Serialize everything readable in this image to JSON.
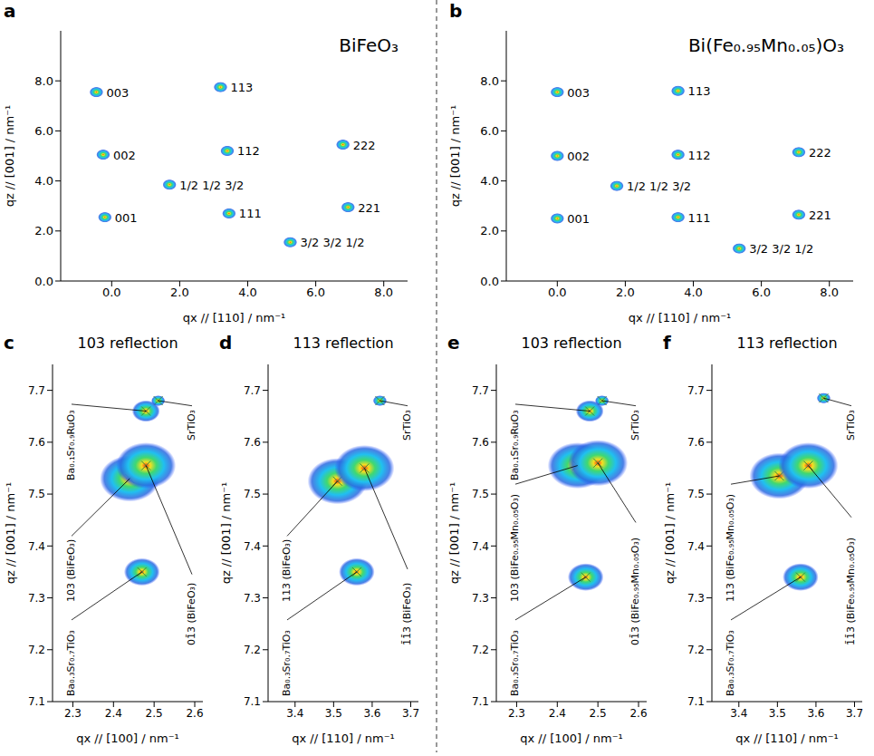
{
  "chart_data": [
    {
      "panel": "a",
      "type": "scatter",
      "title": "BiFeO₃",
      "x_label": "qx // [110] / nm⁻¹",
      "y_label": "qz // [001] / nm⁻¹",
      "xlim": [
        -1.5,
        8.7
      ],
      "xticks": [
        {
          "value": 0,
          "label": "0.0"
        },
        {
          "value": 2,
          "label": "2.0"
        },
        {
          "value": 4,
          "label": "4.0"
        },
        {
          "value": 6,
          "label": "6.0"
        },
        {
          "value": 8,
          "label": "8.0"
        }
      ],
      "ylim": [
        0,
        10
      ],
      "yticks": [
        {
          "value": 0,
          "label": "0.0"
        },
        {
          "value": 2,
          "label": "2.0"
        },
        {
          "value": 4,
          "label": "4.0"
        },
        {
          "value": 6,
          "label": "6.0"
        },
        {
          "value": 8,
          "label": "8.0"
        }
      ],
      "x": [
        -0.2,
        -0.25,
        -0.45,
        3.45,
        3.4,
        3.2,
        6.95,
        6.8,
        1.7,
        5.25
      ],
      "values": [
        2.55,
        5.05,
        7.55,
        2.7,
        5.2,
        7.75,
        2.95,
        5.45,
        3.85,
        1.55
      ],
      "labels": [
        "001",
        "002",
        "003",
        "111",
        "112",
        "113",
        "221",
        "222",
        "1/2 1/2 3/2",
        "3/2 3/2 1/2"
      ]
    },
    {
      "panel": "b",
      "type": "scatter",
      "title": "Bi(Fe₀.₉₅Mn₀.₀₅)O₃",
      "x_label": "qx // [110] / nm⁻¹",
      "y_label": "qz // [001] / nm⁻¹",
      "xlim": [
        -1.5,
        8.7
      ],
      "xticks": [
        {
          "value": 0,
          "label": "0.0"
        },
        {
          "value": 2,
          "label": "2.0"
        },
        {
          "value": 4,
          "label": "4.0"
        },
        {
          "value": 6,
          "label": "6.0"
        },
        {
          "value": 8,
          "label": "8.0"
        }
      ],
      "ylim": [
        0,
        10
      ],
      "yticks": [
        {
          "value": 0,
          "label": "0.0"
        },
        {
          "value": 2,
          "label": "2.0"
        },
        {
          "value": 4,
          "label": "4.0"
        },
        {
          "value": 6,
          "label": "6.0"
        },
        {
          "value": 8,
          "label": "8.0"
        }
      ],
      "x": [
        0,
        0,
        0,
        3.55,
        3.55,
        3.55,
        7.1,
        7.1,
        1.75,
        5.35
      ],
      "values": [
        2.5,
        5.0,
        7.55,
        2.55,
        5.05,
        7.6,
        2.65,
        5.15,
        3.8,
        1.3
      ],
      "labels": [
        "001",
        "002",
        "003",
        "111",
        "112",
        "113",
        "221",
        "222",
        "1/2 1/2 3/2",
        "3/2 3/2 1/2"
      ]
    },
    {
      "panel": "c",
      "type": "scatter",
      "title": "103 reflection",
      "x_label": "qx // [100] / nm⁻¹",
      "y_label": "qz // [001] / nm⁻¹",
      "xlim": [
        2.25,
        2.62
      ],
      "xticks": [
        2.3,
        2.4,
        2.5,
        2.6
      ],
      "ylim": [
        7.1,
        7.75
      ],
      "yticks": [
        7.1,
        7.2,
        7.3,
        7.4,
        7.5,
        7.6,
        7.7
      ],
      "x": [
        2.51,
        2.48,
        2.44,
        2.48,
        2.47
      ],
      "values": [
        7.68,
        7.66,
        7.53,
        7.555,
        7.35
      ],
      "labels": [
        "SrTiO₃",
        "Ba₀.₁Sr₀.₉RuO₃",
        "103 (BiFeO₃)",
        "01̄3 (BiFeO₃)",
        "Ba₀.₃Sr₀.₇TiO₃"
      ]
    },
    {
      "panel": "d",
      "type": "scatter",
      "title": "113 reflection",
      "x_label": "qx // [110] / nm⁻¹",
      "y_label": "qz // [001] / nm⁻¹",
      "xlim": [
        3.33,
        3.72
      ],
      "xticks": [
        3.4,
        3.5,
        3.6,
        3.7
      ],
      "ylim": [
        7.1,
        7.75
      ],
      "yticks": [
        7.1,
        7.2,
        7.3,
        7.4,
        7.5,
        7.6,
        7.7
      ],
      "x": [
        3.62,
        3.51,
        3.58,
        3.56
      ],
      "values": [
        7.68,
        7.525,
        7.55,
        7.35
      ],
      "labels": [
        "SrTiO₃",
        "113 (BiFeO₃)",
        "1̄1̄3 (BiFeO₃)",
        "Ba₀.₃Sr₀.₇TiO₃"
      ]
    },
    {
      "panel": "e",
      "type": "scatter",
      "title": "103 reflection",
      "x_label": "qx // [100] / nm⁻¹",
      "y_label": "qz // [001] / nm⁻¹",
      "xlim": [
        2.25,
        2.62
      ],
      "xticks": [
        2.3,
        2.4,
        2.5,
        2.6
      ],
      "ylim": [
        7.1,
        7.75
      ],
      "yticks": [
        7.1,
        7.2,
        7.3,
        7.4,
        7.5,
        7.6,
        7.7
      ],
      "x": [
        2.51,
        2.48,
        2.45,
        2.5,
        2.47
      ],
      "values": [
        7.68,
        7.66,
        7.555,
        7.56,
        7.34
      ],
      "labels": [
        "SrTiO₃",
        "Ba₀.₁Sr₀.₉RuO₃",
        "103 (BiFe₀.₉₅Mn₀.₀₅O₃)",
        "01̄3 (BiFe₀.₉₅Mn₀.₀₅O₃)",
        "Ba₀.₃Sr₀.₇TiO₃"
      ]
    },
    {
      "panel": "f",
      "type": "scatter",
      "title": "113 reflection",
      "x_label": "qx // [110] / nm⁻¹",
      "y_label": "qz // [001] / nm⁻¹",
      "xlim": [
        3.33,
        3.72
      ],
      "xticks": [
        3.4,
        3.5,
        3.6,
        3.7
      ],
      "ylim": [
        7.1,
        7.75
      ],
      "yticks": [
        7.1,
        7.2,
        7.3,
        7.4,
        7.5,
        7.6,
        7.7
      ],
      "x": [
        3.62,
        3.505,
        3.58,
        3.56
      ],
      "values": [
        7.685,
        7.535,
        7.555,
        7.34
      ],
      "labels": [
        "SrTiO₃",
        "113 (BiFe₀.₉₅Mn₀.₀₅O₃)",
        "1̄1̄3 (BiFe₀.₉₅Mn₀.₀₅O₃)",
        "Ba₀.₃Sr₀.₇TiO₃"
      ]
    }
  ]
}
